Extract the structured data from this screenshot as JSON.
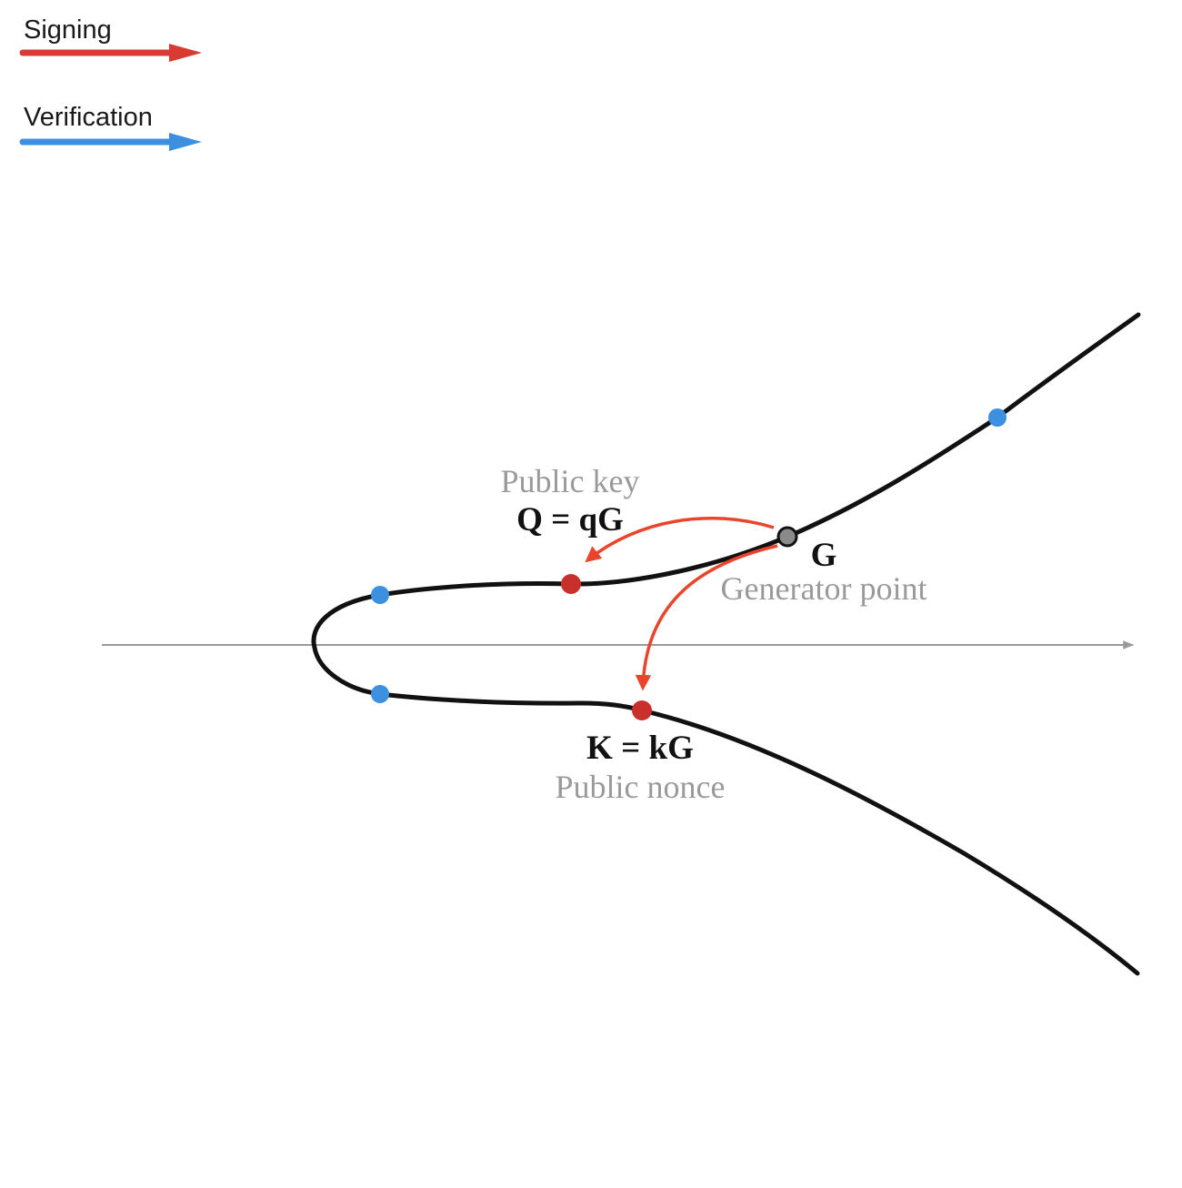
{
  "legend": {
    "signing": {
      "label": "Signing",
      "color": "#d93a32"
    },
    "verification": {
      "label": "Verification",
      "color": "#3d8fe0"
    }
  },
  "points": {
    "public_key": {
      "name": "Public key",
      "formula": "Q = qG",
      "color": "#c9302c"
    },
    "generator": {
      "name": "G",
      "caption": "Generator point",
      "color": "#8a8a8a"
    },
    "public_nonce": {
      "name": "Public nonce",
      "formula": "K = kG",
      "color": "#c9302c"
    },
    "verification_point_color": "#3d8fe0"
  },
  "colors": {
    "curve": "#111111",
    "axis": "#9a9a9a",
    "signing_arrow": "#e8452c"
  }
}
